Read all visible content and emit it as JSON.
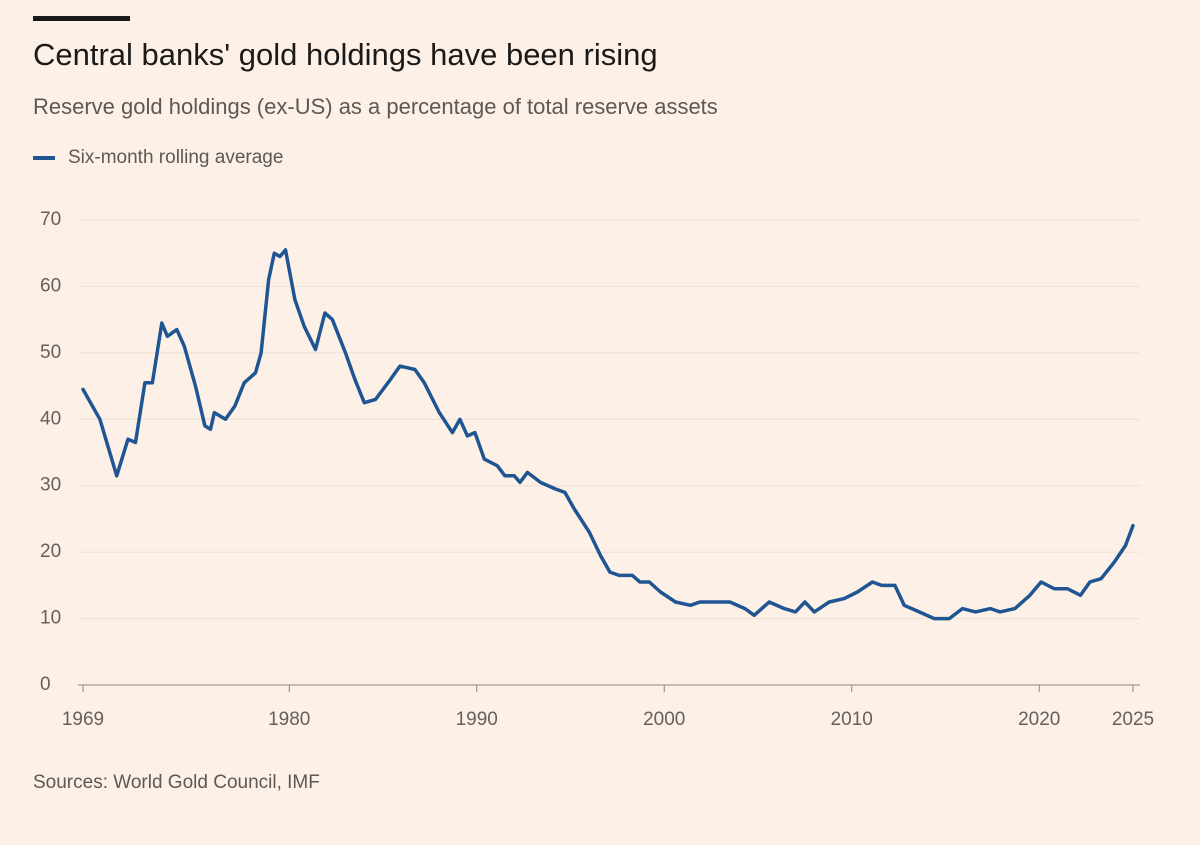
{
  "chart_data": {
    "type": "line",
    "title": "Central banks' gold holdings have been rising",
    "subtitle": "Reserve gold holdings (ex-US) as a percentage of total reserve assets",
    "source": "Sources: World Gold Council, IMF",
    "xlim": [
      1969,
      2025
    ],
    "xticks": [
      1969,
      1980,
      1990,
      2000,
      2010,
      2020,
      2025
    ],
    "ylim": [
      0,
      70
    ],
    "yticks": [
      0,
      10,
      20,
      30,
      40,
      50,
      60,
      70
    ],
    "grid": true,
    "x": [
      1969,
      1969.9,
      1970.8,
      1971.4,
      1971.8,
      1972.3,
      1972.7,
      1973.2,
      1973.5,
      1974.0,
      1974.4,
      1975.0,
      1975.5,
      1975.8,
      1976.0,
      1976.6,
      1977.1,
      1977.6,
      1978.2,
      1978.5,
      1978.9,
      1979.2,
      1979.5,
      1979.8,
      1980.3,
      1980.8,
      1981.4,
      1981.9,
      1982.3,
      1983.0,
      1983.5,
      1984.0,
      1984.6,
      1985.4,
      1985.9,
      1986.7,
      1987.2,
      1988.0,
      1988.7,
      1989.1,
      1989.5,
      1989.9,
      1990.4,
      1991.1,
      1991.5,
      1992.0,
      1992.3,
      1992.7,
      1993.4,
      1994.2,
      1994.7,
      1995.2,
      1996.0,
      1996.6,
      1997.1,
      1997.6,
      1998.3,
      1998.7,
      1999.2,
      1999.8,
      2000.6,
      2001.4,
      2001.9,
      2002.7,
      2003.5,
      2004.3,
      2004.8,
      2005.6,
      2006.4,
      2007.0,
      2007.5,
      2008.0,
      2008.8,
      2009.6,
      2010.3,
      2011.1,
      2011.6,
      2012.3,
      2012.8,
      2013.6,
      2014.4,
      2015.2,
      2015.9,
      2016.6,
      2017.4,
      2017.9,
      2018.7,
      2019.5,
      2020.1,
      2020.8,
      2021.5,
      2022.2,
      2022.7,
      2023.3,
      2024.0,
      2024.6,
      2025.0
    ],
    "series": [
      {
        "name": "Six-month rolling average",
        "color": "#1f5593",
        "values": [
          44.5,
          40,
          31.5,
          37,
          36.5,
          45.5,
          45.5,
          54.5,
          52.5,
          53.5,
          51,
          45,
          39,
          38.5,
          41,
          40,
          42,
          45.5,
          47,
          50,
          61,
          65,
          64.5,
          65.5,
          58,
          54,
          50.5,
          56,
          55,
          50,
          46,
          42.5,
          43,
          46,
          48,
          47.5,
          45.5,
          41,
          38,
          40,
          37.5,
          38,
          34,
          33,
          31.5,
          31.5,
          30.5,
          32,
          30.5,
          29.5,
          29,
          26.5,
          23,
          19.5,
          17,
          16.5,
          16.5,
          15.5,
          15.5,
          14,
          12.5,
          12,
          12.5,
          12.5,
          12.5,
          11.5,
          10.5,
          12.5,
          11.5,
          11,
          12.5,
          11,
          12.5,
          13,
          14,
          15.5,
          15,
          15,
          12,
          11,
          10,
          10,
          11.5,
          11,
          11.5,
          11,
          11.5,
          13.5,
          15.5,
          14.5,
          14.5,
          13.5,
          15.5,
          16,
          18.5,
          21,
          24
        ]
      }
    ]
  }
}
